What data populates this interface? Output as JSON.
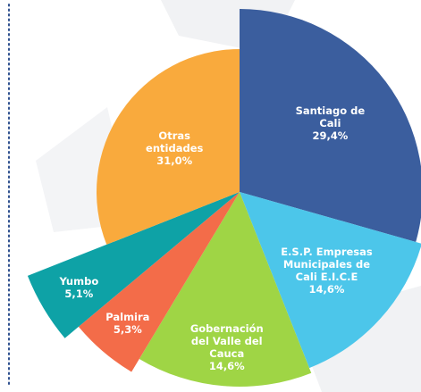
{
  "chart_data": {
    "type": "pie",
    "categories": [
      "Santiago de Cali",
      "E.S.P. Empresas Municipales de Cali E.I.C.E",
      "Gobernación del Valle del Cauca",
      "Palmira",
      "Yumbo",
      "Otras entidades"
    ],
    "values": [
      29.4,
      14.6,
      14.6,
      5.3,
      5.1,
      31.0
    ],
    "value_labels": [
      "29,4%",
      "14,6%",
      "14,6%",
      "5,3%",
      "5,1%",
      "31,0%"
    ],
    "colors": [
      "#3b5e9e",
      "#4cc6ea",
      "#9fd545",
      "#f36c49",
      "#0ea2a6",
      "#f9aa3d"
    ]
  }
}
